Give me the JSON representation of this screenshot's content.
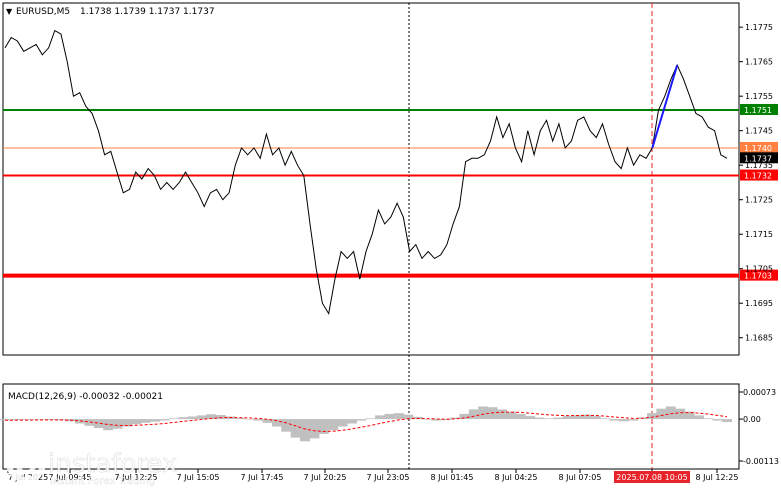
{
  "header": {
    "symbol_label": "EURUSD,M5",
    "ohlc_label": "1.1738 1.1739 1.1737 1.1737"
  },
  "macd": {
    "label": "MACD(12,26,9) -0.00032 -0.00021"
  },
  "brand": {
    "name": "instaforex",
    "tagline": "Instant Forex Trading"
  },
  "colors": {
    "price_line": "#000000",
    "green_level": "#008000",
    "red_level": "#ff0000",
    "orange_level": "#ff8040",
    "current_price_bg": "#000000",
    "highlight_date_bg": "#e8232a",
    "macd_hist": "#c0c0c0",
    "macd_signal": "#ff0000",
    "blue_trend": "#1a1aff"
  },
  "chart_data": {
    "type": "line",
    "symbol": "EURUSD",
    "timeframe": "M5",
    "ylim": [
      1.168,
      1.1782
    ],
    "y_ticks": [
      "1.1775",
      "1.1765",
      "1.1755",
      "1.1745",
      "1.1735",
      "1.1725",
      "1.1715",
      "1.1705",
      "1.1695",
      "1.1685"
    ],
    "x_ticks": [
      "7 Jul 2025",
      "7 Jul 09:45",
      "7 Jul 12:25",
      "7 Jul 15:05",
      "7 Jul 17:45",
      "7 Jul 20:25",
      "7 Jul 23:05",
      "8 Jul 01:45",
      "8 Jul 04:25",
      "8 Jul 07:05",
      "2025.07.08 10:05",
      "8 Jul 12:25"
    ],
    "highlight_time": "2025.07.08 10:05",
    "levels": [
      {
        "value": 1.1751,
        "label": "1.1751",
        "color": "green"
      },
      {
        "value": 1.174,
        "label": "1.1740",
        "color": "orange"
      },
      {
        "value": 1.1737,
        "label": "1.1737",
        "color": "current"
      },
      {
        "value": 1.1732,
        "label": "1.1732",
        "color": "red"
      },
      {
        "value": 1.1703,
        "label": "1.1703",
        "color": "red_thick"
      }
    ],
    "series": [
      {
        "values": [
          1.1769,
          1.1772,
          1.1771,
          1.1768,
          1.1769,
          1.177,
          1.1767,
          1.1769,
          1.1774,
          1.1773,
          1.1765,
          1.1755,
          1.1756,
          1.1752,
          1.175,
          1.1745,
          1.1738,
          1.1739,
          1.1733,
          1.1727,
          1.1728,
          1.1733,
          1.1731,
          1.1734,
          1.1732,
          1.1728,
          1.173,
          1.1728,
          1.173,
          1.1733,
          1.173,
          1.1727,
          1.1723,
          1.1727,
          1.1728,
          1.1725,
          1.1727,
          1.1735,
          1.174,
          1.1738,
          1.174,
          1.1737,
          1.1744,
          1.1738,
          1.174,
          1.1735,
          1.1739,
          1.1735,
          1.1732,
          1.1718,
          1.1705,
          1.1695,
          1.1692,
          1.1702,
          1.171,
          1.1708,
          1.171,
          1.1702,
          1.171,
          1.1715,
          1.1722,
          1.1718,
          1.172,
          1.1724,
          1.172,
          1.171,
          1.1712,
          1.1708,
          1.171,
          1.1708,
          1.1709,
          1.1712,
          1.1718,
          1.1723,
          1.1736,
          1.1737,
          1.1737,
          1.1738,
          1.1742,
          1.1749,
          1.1743,
          1.1747,
          1.174,
          1.1736,
          1.1745,
          1.1738,
          1.1745,
          1.1748,
          1.1742,
          1.1747,
          1.174,
          1.1742,
          1.1748,
          1.1749,
          1.1745,
          1.1743,
          1.1747,
          1.1741,
          1.1736,
          1.1734,
          1.174,
          1.1735,
          1.1738,
          1.1737,
          1.174,
          1.1751,
          1.1755,
          1.176,
          1.1764,
          1.176,
          1.1755,
          1.175,
          1.1749,
          1.1746,
          1.1745,
          1.1738,
          1.1737
        ]
      },
      {
        "name": "",
        "values": [
          -3e-05,
          -3e-05,
          -2e-05,
          -2e-05,
          -1e-05,
          -2e-05,
          -3e-05,
          -6e-05,
          -0.00012,
          -0.00018,
          -0.00024,
          -0.0003,
          -0.00026,
          -0.0002,
          -0.00014,
          -0.0001,
          -7e-05,
          -4e-05,
          2e-05,
          5e-05,
          7e-05,
          0.0001,
          0.00013,
          0.00011,
          7e-05,
          3e-05,
          0.0,
          -4e-05,
          -0.0001,
          -0.0002,
          -0.00034,
          -0.0005,
          -0.0006,
          -0.00052,
          -0.0004,
          -0.0003,
          -0.0002,
          -0.00012,
          -4e-05,
          2e-05,
          0.0001,
          0.00014,
          0.00016,
          0.00012,
          6e-05,
          0.0,
          -4e-05,
          -3e-05,
          4e-05,
          0.00014,
          0.00026,
          0.00034,
          0.00032,
          0.00026,
          0.0002,
          0.00014,
          8e-05,
          4e-05,
          2e-05,
          4e-05,
          8e-05,
          0.0001,
          0.00012,
          8e-05,
          2e-05,
          -4e-05,
          -6e-05,
          -4e-05,
          4e-05,
          0.00016,
          0.00028,
          0.00034,
          0.00028,
          0.0002,
          0.0001,
          2e-05,
          -4e-05,
          -8e-05
        ]
      }
    ]
  }
}
